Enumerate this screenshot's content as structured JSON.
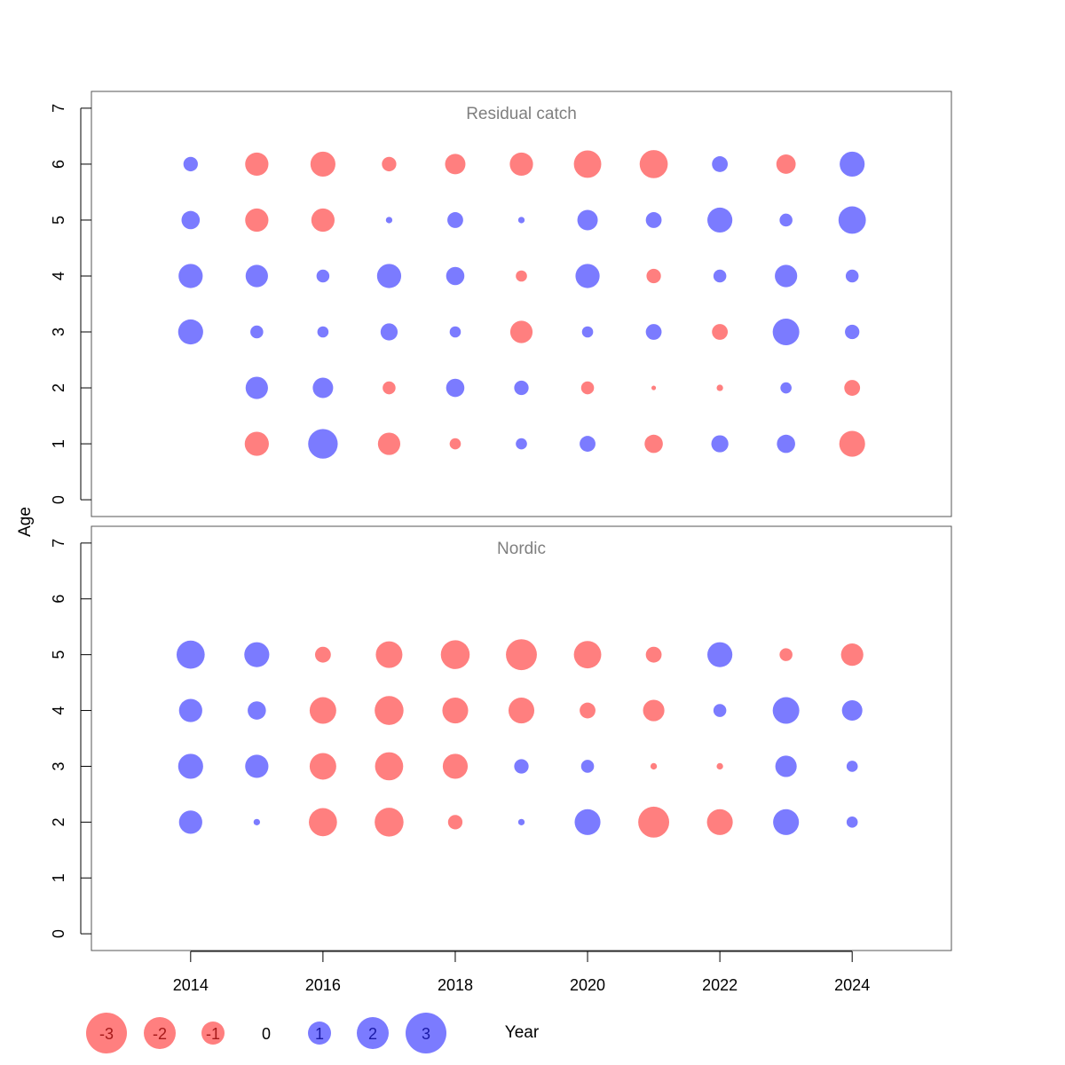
{
  "colors": {
    "positive": "#7b7bff",
    "negative": "#ff7f7f",
    "panel_title": "#7f7f7f",
    "axis": "#000000"
  },
  "chart_data": [
    {
      "type": "scatter",
      "subtype": "bubble",
      "title": "Residual catch",
      "xlabel": "Year",
      "ylabel": "Age",
      "xlim": [
        2012.5,
        2025.5
      ],
      "ylim": [
        -0.3,
        7.3
      ],
      "xticks": [
        2014,
        2016,
        2018,
        2020,
        2022,
        2024
      ],
      "yticks": [
        0,
        1,
        2,
        3,
        4,
        5,
        6,
        7
      ],
      "grid": false,
      "x": [
        2014,
        2015,
        2016,
        2017,
        2018,
        2019,
        2020,
        2021,
        2022,
        2023,
        2024
      ],
      "ages": [
        1,
        2,
        3,
        4,
        5,
        6
      ],
      "residuals": {
        "6": [
          0.5,
          -1.3,
          -1.5,
          -0.5,
          -1.0,
          -1.3,
          -1.8,
          -1.9,
          0.6,
          -0.9,
          1.5
        ],
        "5": [
          0.8,
          -1.3,
          -1.3,
          0.1,
          0.6,
          0.1,
          1.0,
          0.6,
          1.5,
          0.4,
          1.8
        ],
        "4": [
          1.4,
          1.2,
          0.4,
          1.4,
          0.8,
          -0.3,
          1.4,
          -0.5,
          0.4,
          1.2,
          0.4
        ],
        "3": [
          1.5,
          0.4,
          0.3,
          0.7,
          0.3,
          -1.2,
          0.3,
          0.6,
          -0.6,
          1.7,
          0.5
        ],
        "2": [
          null,
          1.2,
          1.0,
          -0.4,
          0.8,
          0.5,
          -0.4,
          -0.05,
          -0.1,
          0.3,
          -0.6
        ],
        "1": [
          null,
          -1.4,
          2.1,
          -1.2,
          -0.3,
          0.3,
          0.6,
          -0.8,
          0.7,
          0.8,
          -1.6
        ]
      }
    },
    {
      "type": "scatter",
      "subtype": "bubble",
      "title": "Nordic",
      "xlabel": "Year",
      "ylabel": "Age",
      "xlim": [
        2012.5,
        2025.5
      ],
      "ylim": [
        -0.3,
        7.3
      ],
      "xticks": [
        2014,
        2016,
        2018,
        2020,
        2022,
        2024
      ],
      "yticks": [
        0,
        1,
        2,
        3,
        4,
        5,
        6,
        7
      ],
      "grid": false,
      "x": [
        2014,
        2015,
        2016,
        2017,
        2018,
        2019,
        2020,
        2021,
        2022,
        2023,
        2024
      ],
      "ages": [
        2,
        3,
        4,
        5
      ],
      "residuals": {
        "5": [
          1.9,
          1.5,
          -0.6,
          -1.7,
          -2.0,
          -2.3,
          -1.8,
          -0.6,
          1.5,
          -0.4,
          -1.2
        ],
        "4": [
          1.3,
          0.8,
          -1.7,
          -2.0,
          -1.6,
          -1.6,
          -0.6,
          -1.1,
          0.4,
          1.7,
          1.0
        ],
        "3": [
          1.5,
          1.3,
          -1.7,
          -1.9,
          -1.5,
          0.5,
          0.4,
          -0.1,
          -0.1,
          1.1,
          0.3
        ],
        "2": [
          1.3,
          0.1,
          -1.9,
          -2.0,
          -0.5,
          0.1,
          1.6,
          -2.3,
          -1.6,
          1.6,
          0.3
        ]
      }
    }
  ],
  "legend": {
    "placement": "bottom",
    "values": [
      -3,
      -2,
      -1,
      0,
      1,
      2,
      3
    ],
    "labels": [
      "-3",
      "-2",
      "-1",
      "0",
      "1",
      "2",
      "3"
    ]
  },
  "xaxis_title": "Year",
  "yaxis_title": "Age"
}
